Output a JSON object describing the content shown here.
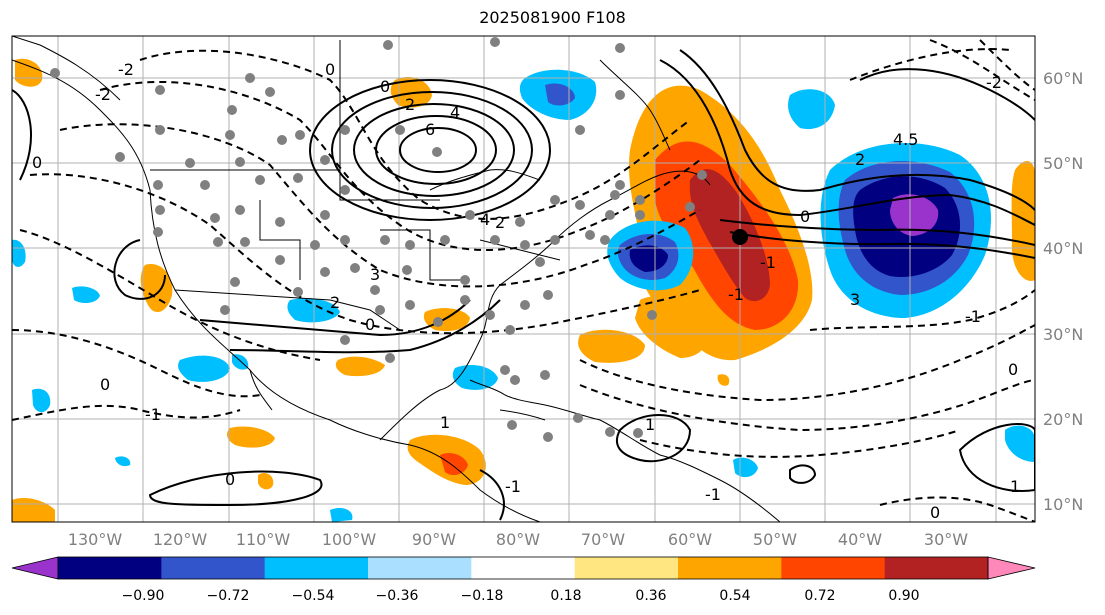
{
  "title": "2025081900 F108",
  "lat_labels": [
    "60°N",
    "50°N",
    "40°N",
    "30°N",
    "20°N",
    "10°N"
  ],
  "lon_labels": [
    "130°W",
    "120°W",
    "110°W",
    "100°W",
    "90°W",
    "80°W",
    "70°W",
    "60°W",
    "50°W",
    "40°W",
    "30°W"
  ],
  "colorbar": {
    "colors": [
      "#9933cc",
      "#000080",
      "#3355cc",
      "#00bfff",
      "#aadfff",
      "#ffffff",
      "#ffe680",
      "#ffa500",
      "#ff4500",
      "#b22222",
      "#ff88bb"
    ],
    "tick_labels": [
      "−0.90",
      "−0.72",
      "−0.54",
      "−0.36",
      "−0.18",
      "0.18",
      "0.36",
      "0.54",
      "0.72",
      "0.90"
    ]
  },
  "contour_labels": [
    "0",
    "2",
    "4",
    "6",
    "4",
    "2",
    "0",
    "0",
    "-2",
    "-1",
    "1",
    "3",
    "4.5",
    "2",
    "0",
    "-1",
    "0",
    "1",
    "0",
    "-1",
    "1",
    "-1",
    "2",
    "3",
    "0",
    "0",
    "-2",
    "-2",
    "-1",
    "0",
    "-1"
  ],
  "colors": {
    "land": "#000000",
    "grid": "#808080",
    "marker": "#808080",
    "center": "#000000"
  }
}
